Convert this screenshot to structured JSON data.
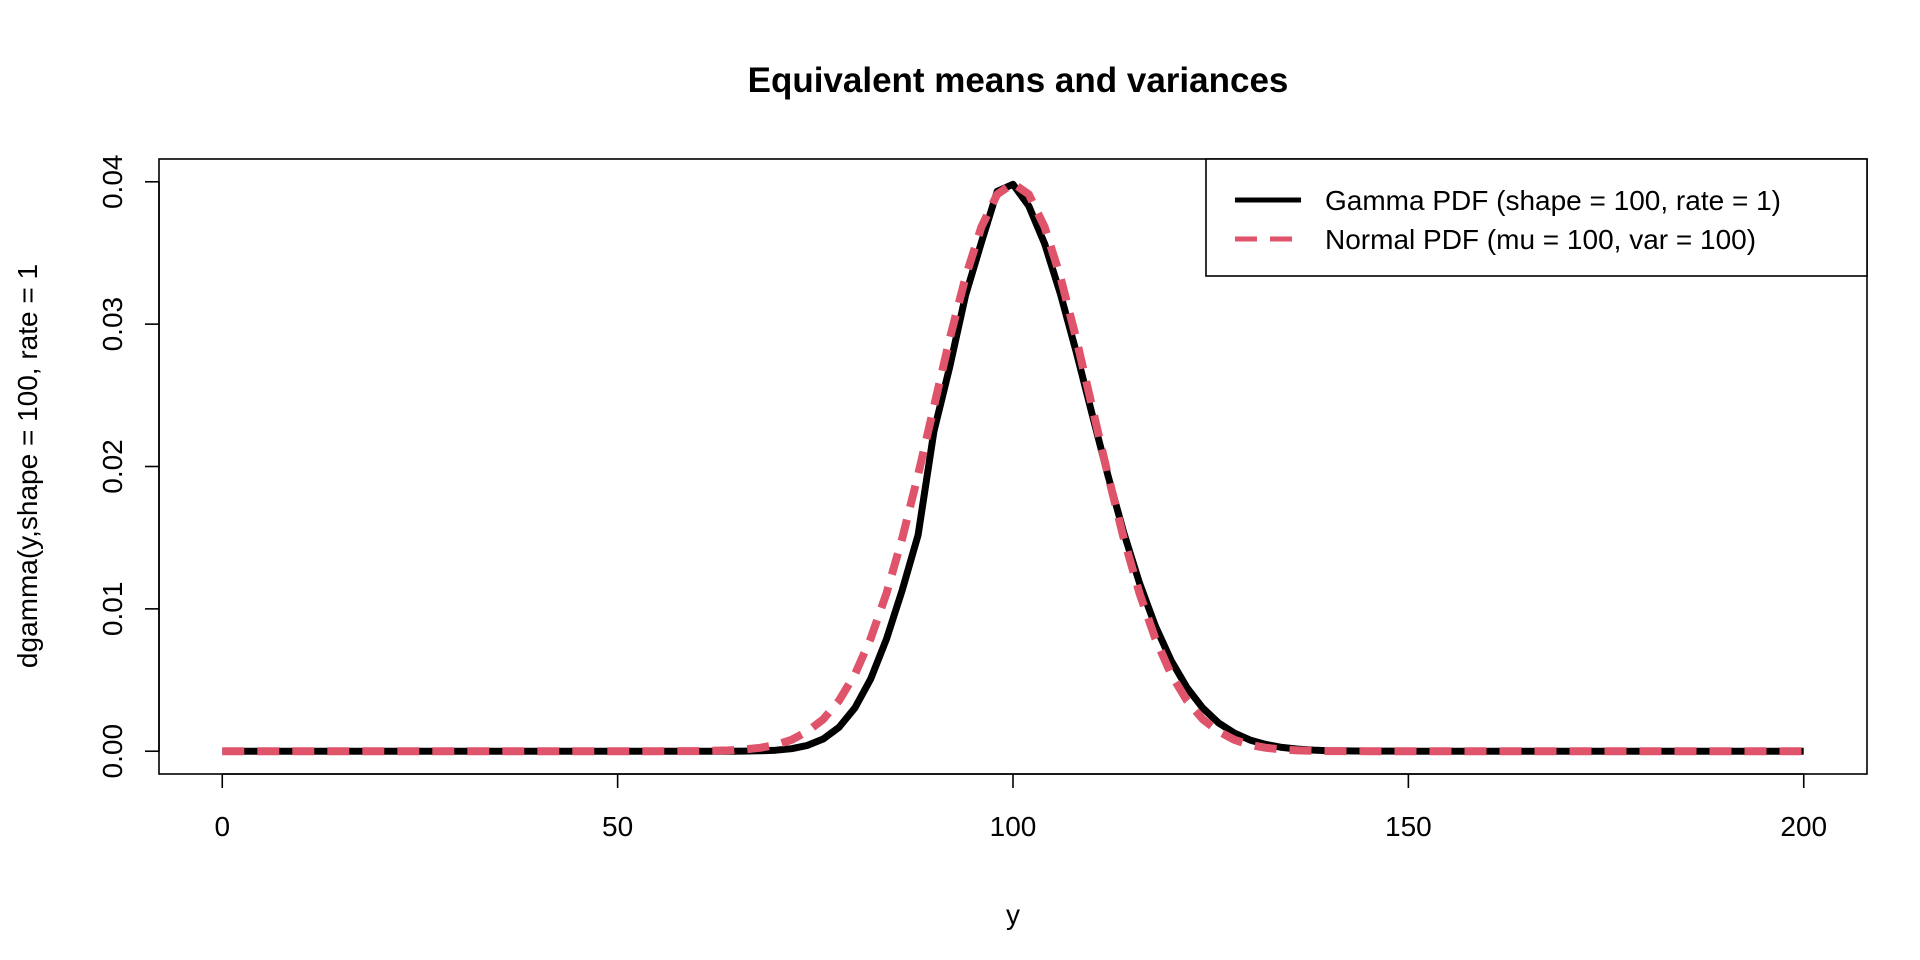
{
  "chart_data": {
    "type": "line",
    "title": "Equivalent means and variances",
    "xlabel": "y",
    "ylabel": "dgamma(y,shape = 100, rate = 1",
    "xlim": [
      -8,
      208
    ],
    "ylim": [
      -0.0016,
      0.0416
    ],
    "xticks": [
      0,
      50,
      100,
      150,
      200
    ],
    "xtick_labels": [
      "0",
      "50",
      "100",
      "150",
      "200"
    ],
    "yticks": [
      0,
      0.01,
      0.02,
      0.03,
      0.04
    ],
    "ytick_labels": [
      "0.00",
      "0.01",
      "0.02",
      "0.03",
      "0.04"
    ],
    "grid": false,
    "legend_position": "top-right",
    "x": [
      0,
      5,
      10,
      15,
      20,
      25,
      30,
      35,
      40,
      45,
      50,
      55,
      60,
      62,
      64,
      66,
      68,
      70,
      72,
      74,
      76,
      78,
      80,
      82,
      84,
      86,
      88,
      90,
      92,
      94,
      96,
      98,
      100,
      102,
      104,
      106,
      108,
      110,
      112,
      114,
      116,
      118,
      120,
      122,
      124,
      126,
      128,
      130,
      132,
      134,
      136,
      138,
      140,
      145,
      150,
      155,
      160,
      165,
      170,
      175,
      180,
      185,
      190,
      195,
      200
    ],
    "series": [
      {
        "name": "Gamma PDF (shape = 100, rate = 1)",
        "color": "#000000",
        "line_style": "solid",
        "values": [
          0,
          0,
          0,
          0,
          0,
          0,
          0,
          0,
          0,
          0,
          0,
          0,
          0,
          0,
          0,
          1e-05,
          3e-05,
          7e-05,
          0.00018,
          0.00041,
          0.00086,
          0.00168,
          0.00304,
          0.00508,
          0.00788,
          0.01133,
          0.01519,
          0.02246,
          0.02699,
          0.03204,
          0.03574,
          0.03933,
          0.03982,
          0.0383,
          0.03566,
          0.03213,
          0.02803,
          0.02368,
          0.01938,
          0.01537,
          0.01182,
          0.00881,
          0.00637,
          0.00446,
          0.00303,
          0.00199,
          0.00127,
          0.00078,
          0.00047,
          0.00027,
          0.00015,
          8e-05,
          4e-05,
          1e-05,
          0,
          0,
          0,
          0,
          0,
          0,
          0,
          0,
          0,
          0,
          0
        ]
      },
      {
        "name": "Normal PDF (mu = 100, var = 100)",
        "color": "#DF536B",
        "line_style": "dashed",
        "values": [
          0,
          0,
          0,
          0,
          0,
          0,
          0,
          0,
          0,
          0,
          0,
          0,
          1e-05,
          3e-05,
          6e-05,
          0.00012,
          0.00024,
          0.00044,
          0.0008,
          0.00139,
          0.00224,
          0.00355,
          0.0054,
          0.00792,
          0.01109,
          0.01497,
          0.01942,
          0.0242,
          0.02897,
          0.03332,
          0.03683,
          0.03911,
          0.03989,
          0.03911,
          0.03683,
          0.03332,
          0.02897,
          0.0242,
          0.01942,
          0.01497,
          0.01109,
          0.00792,
          0.0054,
          0.00355,
          0.00224,
          0.00139,
          0.0008,
          0.00044,
          0.00024,
          0.00012,
          6e-05,
          3e-05,
          1e-05,
          0,
          0,
          0,
          0,
          0,
          0,
          0,
          0,
          0,
          0,
          0,
          0
        ]
      }
    ]
  }
}
